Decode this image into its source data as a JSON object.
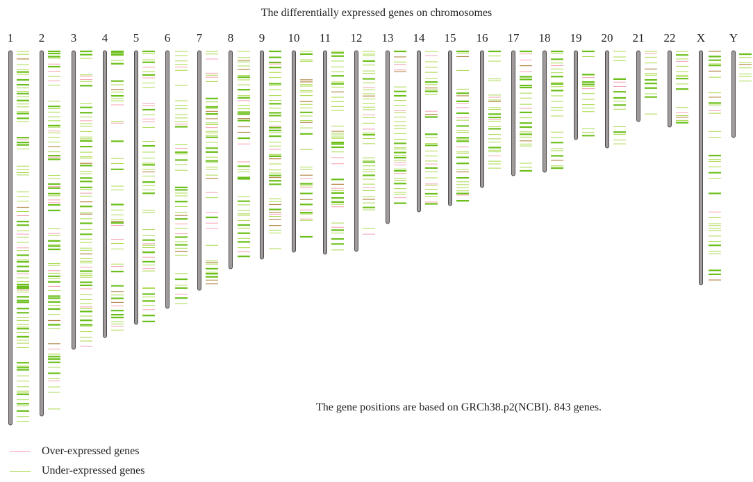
{
  "title": "The differentially expressed genes on chromosomes",
  "note": "The gene positions are based on GRCh38.p2(NCBI). 843 genes.",
  "legend": [
    {
      "label": "Over-expressed genes",
      "color": "#f4a0b0"
    },
    {
      "label": "Under-expressed genes",
      "color": "#a8d84a"
    }
  ],
  "colors": {
    "chromosome_body": "#a09a9a",
    "chromosome_outline": "#4a4a4a",
    "under_expressed": "#a8d84a",
    "under_expressed_dense": "#6bbf1a",
    "over_expressed": "#f4a0b0",
    "mixed": "#b58a4a"
  },
  "chromosomes": [
    "1",
    "2",
    "3",
    "4",
    "5",
    "6",
    "7",
    "8",
    "9",
    "10",
    "11",
    "12",
    "13",
    "14",
    "15",
    "16",
    "17",
    "18",
    "19",
    "20",
    "21",
    "22",
    "X",
    "Y"
  ]
}
